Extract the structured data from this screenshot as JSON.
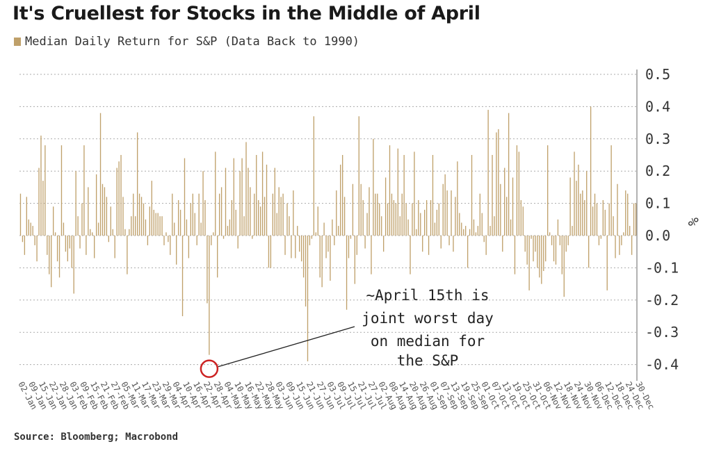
{
  "title": "It's Cruellest for Stocks in the Middle of April",
  "legend": {
    "label": "Median Daily Return for S&P (Data Back to 1990)",
    "color": "#bfa06a"
  },
  "source": "Source: Bloomberg; Macrobond",
  "colors": {
    "bar": "#bfa06a",
    "grid": "#aaaaaa",
    "highlight": "#cc2222",
    "axis": "#666666"
  },
  "chart_data": {
    "type": "bar",
    "title": "It's Cruellest for Stocks in the Middle of April",
    "ylabel": "%",
    "ylim": [
      -0.45,
      0.55
    ],
    "yticks": [
      0.5,
      0.4,
      0.3,
      0.2,
      0.1,
      0.0,
      -0.1,
      -0.2,
      -0.3,
      -0.4
    ],
    "ytick_labels": [
      "0.5",
      "0.4",
      "0.3",
      "0.2",
      "0.1",
      "0.0",
      "-0.1",
      "-0.2",
      "-0.3",
      "-0.4"
    ],
    "grid": true,
    "series": [
      {
        "name": "Median Daily Return for S&P (Data Back to 1990)",
        "values": [
          0.13,
          -0.02,
          -0.06,
          0.12,
          0.05,
          0.04,
          0.03,
          -0.03,
          -0.08,
          0.21,
          0.31,
          0.17,
          0.28,
          -0.06,
          -0.12,
          -0.16,
          0.09,
          0.01,
          -0.08,
          -0.13,
          0.28,
          0.04,
          -0.05,
          -0.08,
          -0.04,
          -0.1,
          -0.18,
          0.2,
          0.06,
          -0.04,
          0.1,
          0.28,
          -0.06,
          0.15,
          0.02,
          0.01,
          -0.07,
          0.19,
          0.04,
          0.38,
          0.16,
          0.15,
          0.12,
          -0.02,
          0.09,
          0.02,
          -0.07,
          0.21,
          0.23,
          0.25,
          0.12,
          0.02,
          -0.12,
          0.02,
          0.06,
          0.13,
          0.06,
          0.32,
          0.13,
          0.12,
          0.1,
          0.05,
          -0.03,
          0.09,
          0.17,
          0.08,
          0.07,
          0.07,
          0.06,
          0.06,
          -0.03,
          0.01,
          -0.02,
          -0.06,
          0.13,
          0.04,
          -0.09,
          0.11,
          0.08,
          -0.25,
          0.24,
          0.05,
          -0.07,
          0.1,
          0.13,
          0.07,
          -0.03,
          0.13,
          0.04,
          0.2,
          0.11,
          -0.21,
          -0.37,
          -0.03,
          0.01,
          0.26,
          -0.13,
          0.13,
          0.15,
          -0.01,
          0.21,
          0.03,
          0.05,
          0.11,
          0.24,
          0.08,
          -0.04,
          0.2,
          0.24,
          0.06,
          0.29,
          0.21,
          0.15,
          -0.01,
          0.13,
          0.25,
          0.11,
          0.09,
          0.26,
          0.12,
          0.22,
          -0.1,
          -0.1,
          0.13,
          0.21,
          0.07,
          0.15,
          0.12,
          0.13,
          -0.06,
          0.1,
          0.06,
          -0.07,
          0.14,
          -0.07,
          0.03,
          -0.05,
          -0.08,
          -0.13,
          -0.22,
          -0.39,
          -0.03,
          -0.01,
          0.37,
          0.01,
          0.09,
          -0.13,
          -0.16,
          0.04,
          -0.07,
          -0.05,
          -0.14,
          0.05,
          -0.03,
          0.14,
          0.03,
          0.22,
          0.25,
          0.12,
          -0.23,
          -0.07,
          -0.01,
          0.16,
          -0.15,
          -0.06,
          0.37,
          0.16,
          0.11,
          -0.04,
          0.07,
          0.15,
          -0.12,
          0.3,
          0.13,
          0.13,
          0.1,
          0.06,
          -0.05,
          0.18,
          0.1,
          0.28,
          0.13,
          0.11,
          0.1,
          0.27,
          0.06,
          0.13,
          0.25,
          0.1,
          0.05,
          -0.12,
          0.1,
          0.26,
          0.02,
          0.11,
          0.07,
          -0.05,
          0.08,
          0.11,
          -0.06,
          0.11,
          0.25,
          0.04,
          0.08,
          0.1,
          -0.04,
          0.16,
          0.19,
          0.14,
          -0.03,
          0.14,
          -0.05,
          0.12,
          0.23,
          0.07,
          0.04,
          0.02,
          0.03,
          -0.1,
          0.02,
          0.25,
          0.05,
          0.01,
          0.03,
          0.13,
          0.07,
          -0.02,
          -0.06,
          0.39,
          0.03,
          0.25,
          0.06,
          0.32,
          0.33,
          0.16,
          -0.05,
          0.21,
          0.12,
          0.38,
          0.05,
          0.18,
          -0.12,
          0.28,
          0.26,
          0.11,
          0.09,
          -0.05,
          -0.09,
          -0.17,
          -0.01,
          -0.08,
          -0.05,
          -0.1,
          -0.13,
          -0.15,
          -0.11,
          -0.08,
          0.28,
          0.01,
          -0.03,
          -0.08,
          -0.09,
          0.05,
          -0.03,
          -0.12,
          -0.19,
          -0.05,
          -0.03,
          0.18,
          0.03,
          0.26,
          0.17,
          0.22,
          0.13,
          0.14,
          0.11,
          0.2,
          -0.1,
          0.4,
          0.09,
          0.13,
          0.1,
          -0.03,
          -0.01,
          0.11,
          0.08,
          -0.17,
          0.1,
          0.28,
          0.06,
          -0.07,
          0.16,
          -0.06,
          -0.03,
          0.01,
          0.14,
          0.13,
          0.03,
          -0.06,
          0.1,
          0.1
        ]
      }
    ],
    "x_labels": [
      "02-Jan",
      "09-Jan",
      "15-Jan",
      "22-Jan",
      "28-Jan",
      "03-Feb",
      "09-Feb",
      "15-Feb",
      "21-Feb",
      "27-Feb",
      "05-Mar",
      "11-Mar",
      "17-Mar",
      "23-Mar",
      "29-Mar",
      "04-Apr",
      "10-Apr",
      "16-Apr",
      "22-Apr",
      "28-Apr",
      "04-May",
      "10-May",
      "16-May",
      "22-May",
      "28-May",
      "03-Jun",
      "09-Jun",
      "15-Jun",
      "21-Jun",
      "27-Jun",
      "03-Jul",
      "09-Jul",
      "15-Jul",
      "21-Jul",
      "27-Jul",
      "02-Aug",
      "08-Aug",
      "14-Aug",
      "20-Aug",
      "26-Aug",
      "01-Sep",
      "07-Sep",
      "13-Sep",
      "19-Sep",
      "25-Sep",
      "01-Oct",
      "07-Oct",
      "13-Oct",
      "19-Oct",
      "25-Oct",
      "31-Oct",
      "06-Nov",
      "12-Nov",
      "18-Nov",
      "24-Nov",
      "30-Nov",
      "06-Dec",
      "12-Dec",
      "18-Dec",
      "24-Dec",
      "30-Dec"
    ],
    "annotation": {
      "lines": [
        "~April 15th is",
        "joint worst day",
        "on median for",
        "the S&P"
      ],
      "target_index": 92,
      "target_value": -0.37
    }
  }
}
